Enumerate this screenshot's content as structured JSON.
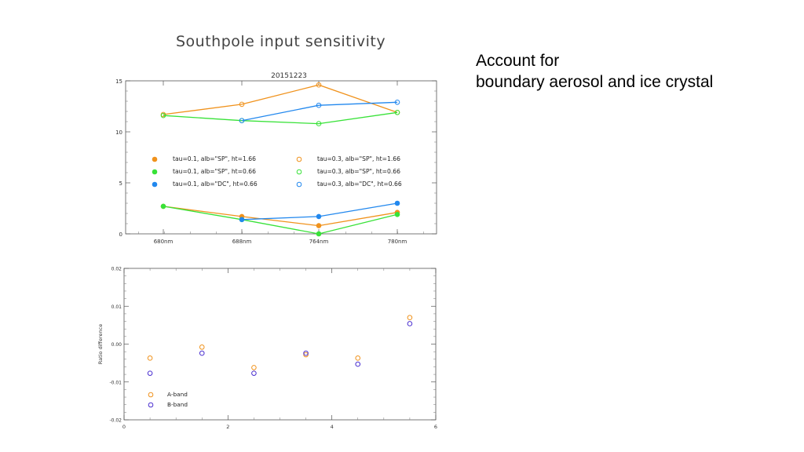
{
  "slide": {
    "title": "Southpole input sensitivity",
    "notes": [
      "Account for",
      "boundary aerosol and ice crystal"
    ]
  },
  "colors": {
    "orange": "#f0921c",
    "green": "#38e238",
    "blue": "#2288ee",
    "purple": "#4a2fd0"
  },
  "chart_data": [
    {
      "type": "line",
      "title": "20151223",
      "xlabel": "",
      "ylabel": "",
      "categories": [
        "680nm",
        "688nm",
        "764nm",
        "780nm"
      ],
      "ylim": [
        0,
        15
      ],
      "yticks": [
        0,
        5,
        10,
        15
      ],
      "legend_position": "center",
      "series": [
        {
          "name": "tau=0.1, alb=\"SP\", ht=1.66",
          "color": "#f0921c",
          "marker": "filled",
          "values": [
            2.7,
            1.7,
            0.8,
            2.1
          ]
        },
        {
          "name": "tau=0.1, alb=\"SP\", ht=0.66",
          "color": "#38e238",
          "marker": "filled",
          "values": [
            2.7,
            1.4,
            0.0,
            1.9
          ]
        },
        {
          "name": "tau=0.1, alb=\"DC\", ht=0.66",
          "color": "#2288ee",
          "marker": "filled",
          "values": [
            null,
            1.4,
            1.7,
            3.0
          ]
        },
        {
          "name": "tau=0.3, alb=\"SP\", ht=1.66",
          "color": "#f0921c",
          "marker": "open",
          "values": [
            11.7,
            12.7,
            14.6,
            11.9
          ]
        },
        {
          "name": "tau=0.3, alb=\"SP\", ht=0.66",
          "color": "#38e238",
          "marker": "open",
          "values": [
            11.6,
            11.1,
            10.8,
            11.9
          ]
        },
        {
          "name": "tau=0.3, alb=\"DC\", ht=0.66",
          "color": "#2288ee",
          "marker": "open",
          "values": [
            null,
            11.1,
            12.6,
            12.9
          ]
        }
      ]
    },
    {
      "type": "scatter",
      "title": "",
      "xlabel": "",
      "ylabel": "Ratio difference",
      "xlim": [
        0,
        6
      ],
      "ylim": [
        -0.02,
        0.02
      ],
      "xticks": [
        0,
        2,
        4,
        6
      ],
      "yticks": [
        "-0.02",
        "-0.01",
        "0.00",
        "0.01",
        "0.02"
      ],
      "legend_position": "bottom-left",
      "series": [
        {
          "name": "A-band",
          "color": "#f0921c",
          "x": [
            0.5,
            1.5,
            2.5,
            3.5,
            4.5,
            5.5
          ],
          "y": [
            -0.0037,
            -0.0008,
            -0.0062,
            -0.0028,
            -0.0037,
            0.007
          ]
        },
        {
          "name": "B-band",
          "color": "#4a2fd0",
          "x": [
            0.5,
            1.5,
            2.5,
            3.5,
            4.5,
            5.5
          ],
          "y": [
            -0.0077,
            -0.0024,
            -0.0077,
            -0.0024,
            -0.0053,
            0.0054
          ]
        }
      ]
    }
  ]
}
